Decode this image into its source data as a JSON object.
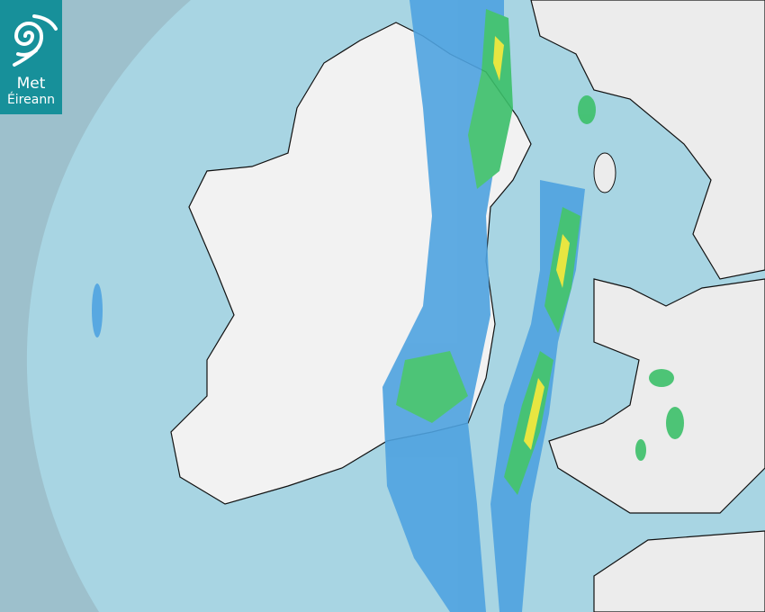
{
  "logo": {
    "line1": "Met",
    "line2": "Éireann"
  },
  "colors": {
    "outside_coverage": "#9dc0cc",
    "sea": "#a8d5e3",
    "land": "#f2f2f2",
    "rain_light": "#4fa3e0",
    "rain_moderate": "#3cc06a",
    "rain_heavy": "#f0e830",
    "logo_bg": "#17909a"
  },
  "icons": [
    "met-eireann-spiral-logo-icon"
  ]
}
